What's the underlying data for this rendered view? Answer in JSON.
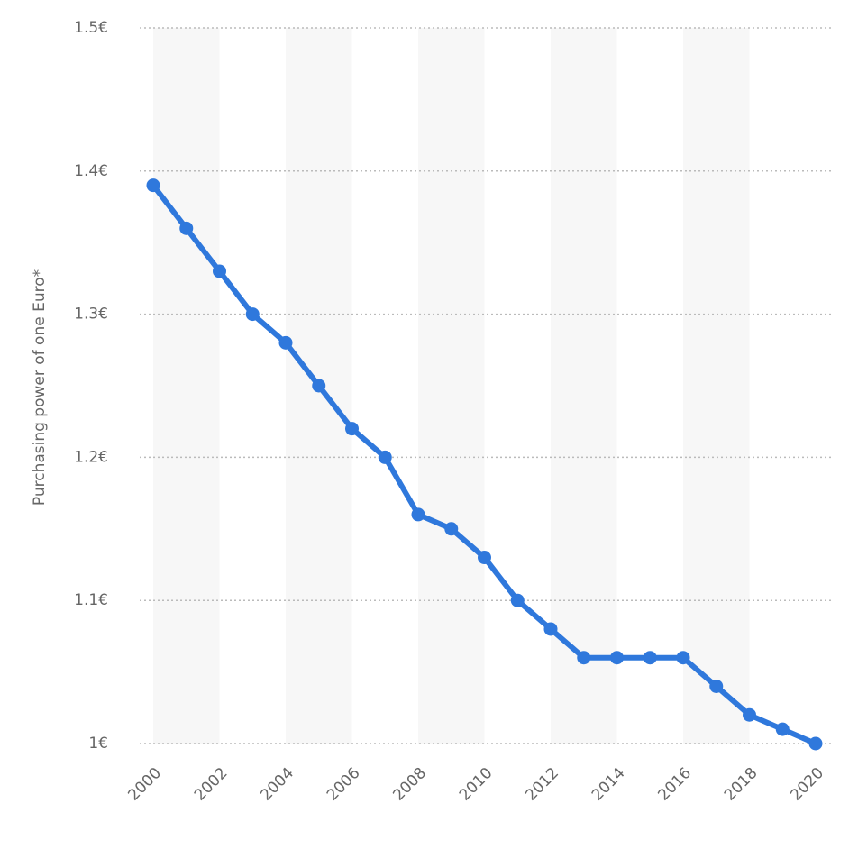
{
  "chart_data": {
    "type": "line",
    "y_label": "Purchasing power of one Euro*",
    "x": [
      2000,
      2001,
      2002,
      2003,
      2004,
      2005,
      2006,
      2007,
      2008,
      2009,
      2010,
      2011,
      2012,
      2013,
      2014,
      2015,
      2016,
      2017,
      2018,
      2019,
      2020
    ],
    "series": [
      {
        "name": "Purchasing power",
        "color": "#2f78dc",
        "values": [
          1.39,
          1.36,
          1.33,
          1.3,
          1.28,
          1.25,
          1.22,
          1.2,
          1.16,
          1.15,
          1.13,
          1.1,
          1.08,
          1.06,
          1.06,
          1.06,
          1.06,
          1.04,
          1.02,
          1.01,
          1.0
        ]
      }
    ],
    "xlim": [
      2000,
      2020
    ],
    "xticks": [
      2000,
      2002,
      2004,
      2006,
      2008,
      2010,
      2012,
      2014,
      2016,
      2018,
      2020
    ],
    "ylim": [
      1,
      1.5
    ],
    "yticks": [
      {
        "value": 1,
        "label": "1€"
      },
      {
        "value": 1.1,
        "label": "1.1€"
      },
      {
        "value": 1.2,
        "label": "1.2€"
      },
      {
        "value": 1.3,
        "label": "1.3€"
      },
      {
        "value": 1.4,
        "label": "1.4€"
      },
      {
        "value": 1.5,
        "label": "1.5€"
      }
    ],
    "grid": true
  }
}
